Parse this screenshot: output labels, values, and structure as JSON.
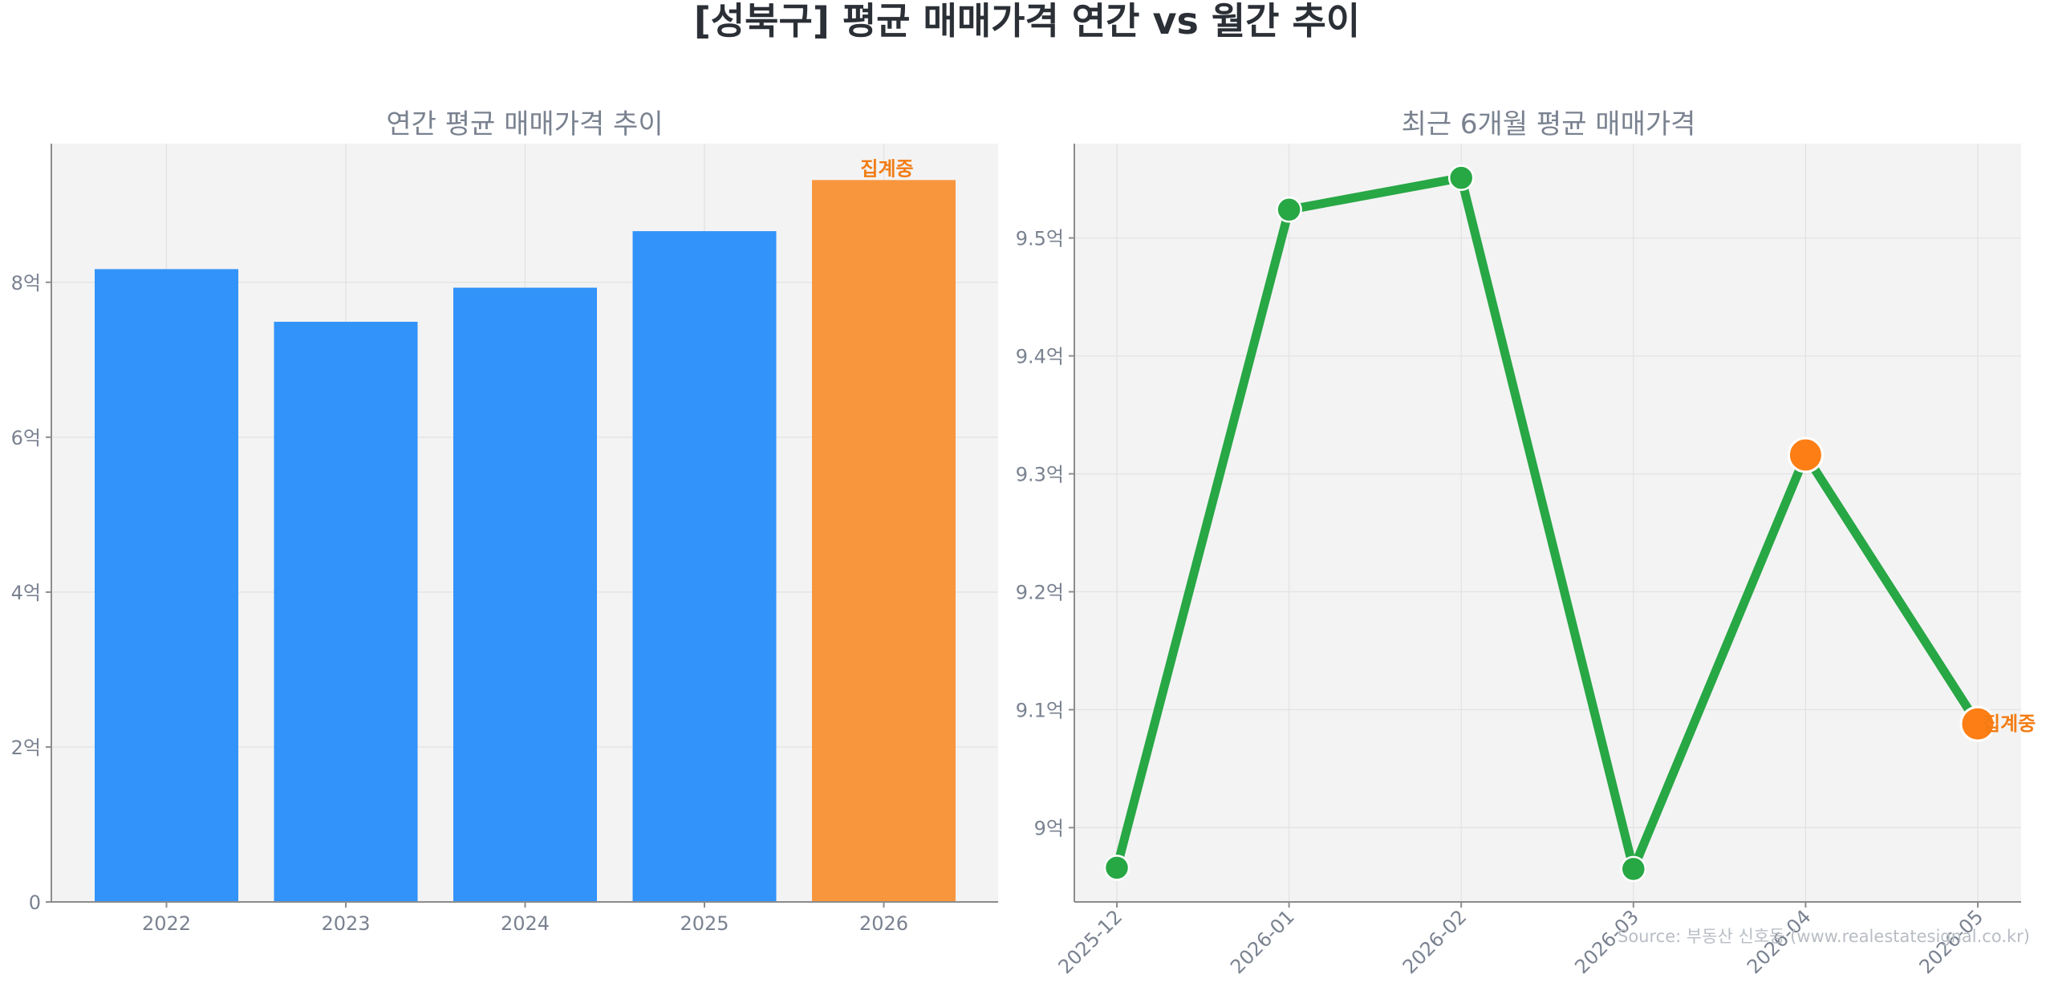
{
  "title": "[성북구] 평균 매매가격 연간 vs 월간 추이",
  "source": "Source: 부동산 신호등 (www.realestatesignal.co.kr)",
  "colors": {
    "bar": "#3293fa",
    "bar_highlight": "#f8963d",
    "line": "#28a745",
    "point_highlight": "#fd7e14",
    "plot_bg": "#f3f3f3",
    "tag": "#f27c13"
  },
  "chart_data": [
    {
      "type": "bar",
      "title": "연간 평균 매매가격 추이",
      "categories": [
        "2022",
        "2023",
        "2024",
        "2025",
        "2026"
      ],
      "values": [
        8.17,
        7.49,
        7.93,
        8.66,
        9.32
      ],
      "highlight_index": 4,
      "annotation": "집계중",
      "ylim": [
        0,
        9.79
      ],
      "yticks": [
        {
          "value": 0,
          "label": "0"
        },
        {
          "value": 2,
          "label": "2억"
        },
        {
          "value": 4,
          "label": "4억"
        },
        {
          "value": 6,
          "label": "6억"
        },
        {
          "value": 8,
          "label": "8억"
        }
      ],
      "grid": true
    },
    {
      "type": "line",
      "title": "최근 6개월 평균 매매가격",
      "categories": [
        "2025-12",
        "2026-01",
        "2026-02",
        "2026-03",
        "2026-04",
        "2026-05"
      ],
      "values": [
        8.966,
        9.524,
        9.551,
        8.965,
        9.316,
        9.088
      ],
      "highlight_indices": [
        4,
        5
      ],
      "annotation": "집계중",
      "ylim": [
        8.937,
        9.58
      ],
      "yticks": [
        {
          "value": 9.0,
          "label": "9억"
        },
        {
          "value": 9.1,
          "label": "9.1억"
        },
        {
          "value": 9.2,
          "label": "9.2억"
        },
        {
          "value": 9.3,
          "label": "9.3억"
        },
        {
          "value": 9.4,
          "label": "9.4억"
        },
        {
          "value": 9.5,
          "label": "9.5억"
        }
      ],
      "grid": true
    }
  ]
}
